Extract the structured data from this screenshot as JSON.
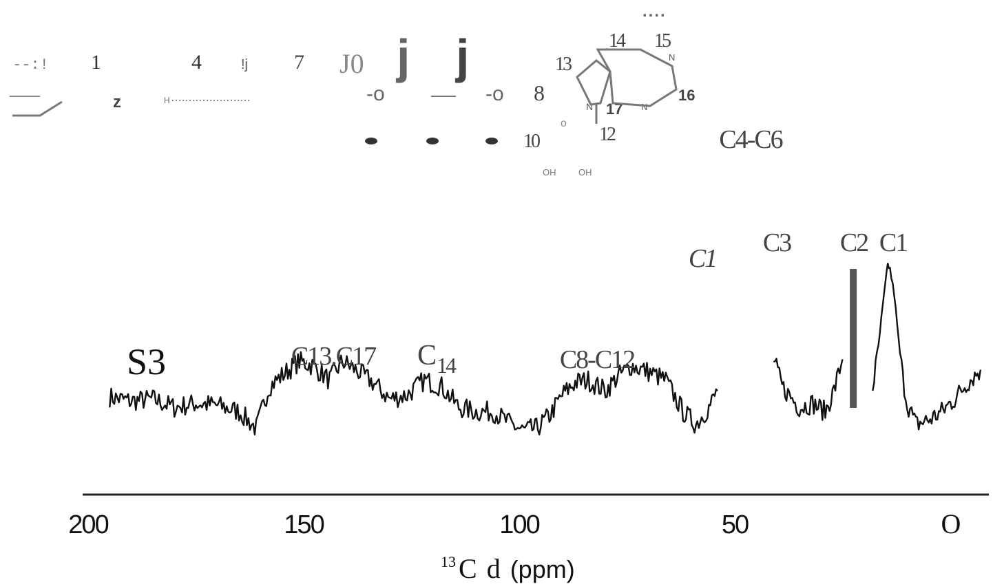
{
  "chart_data": {
    "type": "line",
    "title": "",
    "sample_label": "S3",
    "xlabel": {
      "superscript": "13",
      "element": "C",
      "symbol": "d",
      "unit": "(ppm)"
    },
    "x_ticks": [
      "200",
      "150",
      "100",
      "50",
      "O"
    ],
    "x_tick_values": [
      200,
      150,
      100,
      50,
      0
    ],
    "xlim": [
      200,
      0
    ],
    "x_reversed": true,
    "grid": false,
    "peak_labels": [
      {
        "text": "C13.C17",
        "ppm": 139,
        "style": "normal"
      },
      {
        "main": "C",
        "sub": "14",
        "ppm": 122,
        "style": "subscript"
      },
      {
        "text": "C8-C12",
        "ppm": 80,
        "style": "normal"
      },
      {
        "text": "C1",
        "ppm": 55,
        "style": "italic"
      },
      {
        "text": "C3",
        "ppm": 30,
        "style": "normal"
      },
      {
        "text": "C2",
        "ppm": 22.5,
        "style": "normal"
      },
      {
        "text": "C1",
        "ppm": 15,
        "style": "normal"
      },
      {
        "text": "C4-C6",
        "ppm": 45,
        "style": "normal"
      }
    ],
    "spectrum_segments": [
      {
        "name": "",
        "points": [
          [
            195,
            0.37
          ],
          [
            190,
            0.35
          ],
          [
            185,
            0.36
          ],
          [
            180,
            0.32
          ],
          [
            175,
            0.34
          ],
          [
            170,
            0.33
          ],
          [
            165,
            0.3
          ],
          [
            161,
            0.22
          ],
          [
            158,
            0.42
          ],
          [
            154,
            0.49
          ],
          [
            151,
            0.54
          ],
          [
            148,
            0.52
          ],
          [
            144,
            0.45
          ],
          [
            141,
            0.54
          ],
          [
            138,
            0.5
          ],
          [
            134,
            0.44
          ],
          [
            130,
            0.36
          ],
          [
            126,
            0.38
          ],
          [
            122,
            0.45
          ],
          [
            118,
            0.42
          ],
          [
            114,
            0.32
          ],
          [
            110,
            0.3
          ],
          [
            106,
            0.3
          ],
          [
            102,
            0.24
          ],
          [
            99,
            0.21
          ],
          [
            96,
            0.22
          ],
          [
            93,
            0.28
          ],
          [
            90,
            0.38
          ],
          [
            87,
            0.44
          ],
          [
            84,
            0.45
          ],
          [
            80,
            0.4
          ],
          [
            77,
            0.47
          ],
          [
            74,
            0.52
          ],
          [
            70,
            0.49
          ],
          [
            66,
            0.45
          ],
          [
            62,
            0.3
          ],
          [
            59,
            0.24
          ],
          [
            56,
            0.32
          ],
          [
            54,
            0.4
          ]
        ]
      },
      {
        "name": "",
        "points": [
          [
            41,
            0.55
          ],
          [
            39,
            0.42
          ],
          [
            37,
            0.37
          ],
          [
            35,
            0.32
          ],
          [
            32,
            0.34
          ],
          [
            29,
            0.3
          ],
          [
            27,
            0.4
          ],
          [
            25,
            0.55
          ]
        ]
      },
      {
        "name": "",
        "points": [
          [
            18,
            0.42
          ],
          [
            17,
            0.55
          ],
          [
            16,
            0.74
          ],
          [
            15,
            0.92
          ],
          [
            14.5,
            1.0
          ],
          [
            14,
            0.98
          ],
          [
            13,
            0.86
          ],
          [
            12,
            0.64
          ],
          [
            11,
            0.46
          ],
          [
            10,
            0.34
          ],
          [
            8,
            0.24
          ],
          [
            5,
            0.26
          ],
          [
            2,
            0.3
          ],
          [
            -1,
            0.36
          ],
          [
            -4,
            0.44
          ],
          [
            -7,
            0.5
          ]
        ]
      }
    ],
    "reference_bar_ppm": 22.5,
    "colors": {
      "trace": "#111111",
      "bar": "#555555",
      "label": "#444444",
      "axis": "#222222"
    }
  },
  "structure_fragment": {
    "numbers": [
      "1",
      "4",
      "7",
      "8",
      "10",
      "12",
      "13",
      "14",
      "15",
      "16",
      "17"
    ],
    "atoms": [
      "N",
      "N",
      "N",
      "OH",
      "OH",
      "H"
    ],
    "glyphs": [
      "--:!",
      "!j",
      "J0",
      "j",
      "j",
      "-o",
      "-o",
      "z",
      "....",
      "·····"
    ]
  }
}
